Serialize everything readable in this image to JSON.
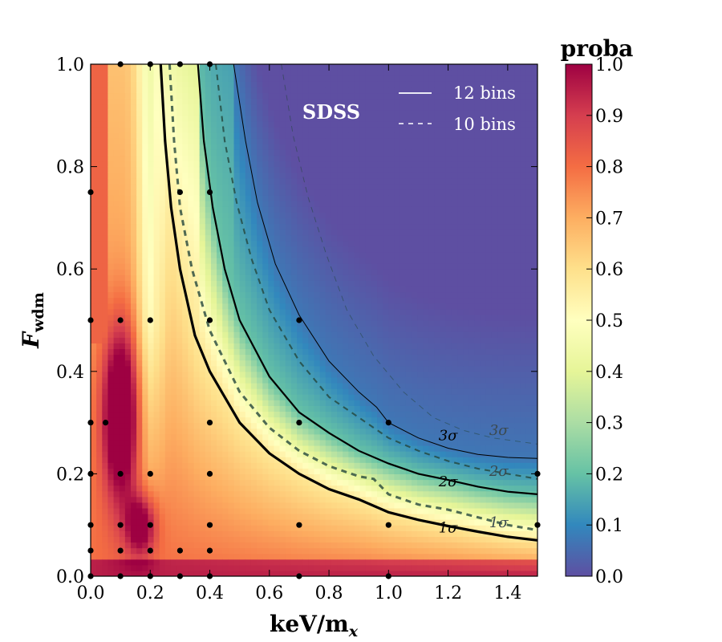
{
  "chart_data": {
    "type": "heatmap",
    "xlabel": "keV/m",
    "xlabel_sub": "x",
    "ylabel": "F",
    "ylabel_sub": "wdm",
    "xlim": [
      0.0,
      1.5
    ],
    "ylim": [
      0.0,
      1.0
    ],
    "xticks": [
      0.0,
      0.2,
      0.4,
      0.6,
      0.8,
      1.0,
      1.2,
      1.4
    ],
    "yticks": [
      0.0,
      0.2,
      0.4,
      0.6,
      0.8,
      1.0
    ],
    "annotation": "SDSS",
    "colorbar": {
      "title": "proba",
      "range": [
        0.0,
        1.0
      ],
      "ticks": [
        0.0,
        0.1,
        0.2,
        0.3,
        0.4,
        0.5,
        0.6,
        0.7,
        0.8,
        0.9,
        1.0
      ],
      "colormap": "Spectral_r"
    },
    "legend": {
      "position": "top-right",
      "entries": [
        {
          "label": "12 bins",
          "style": "solid"
        },
        {
          "label": "10 bins",
          "style": "dashed"
        }
      ]
    },
    "contours": [
      {
        "label": "1σ",
        "bins": "12",
        "style": "solid",
        "points": [
          [
            0.235,
            1.0
          ],
          [
            0.25,
            0.85
          ],
          [
            0.27,
            0.72
          ],
          [
            0.3,
            0.6
          ],
          [
            0.35,
            0.47
          ],
          [
            0.4,
            0.4
          ],
          [
            0.5,
            0.3
          ],
          [
            0.6,
            0.24
          ],
          [
            0.7,
            0.2
          ],
          [
            0.8,
            0.17
          ],
          [
            0.9,
            0.15
          ],
          [
            1.0,
            0.125
          ],
          [
            1.1,
            0.11
          ],
          [
            1.2,
            0.098
          ],
          [
            1.3,
            0.087
          ],
          [
            1.4,
            0.077
          ],
          [
            1.5,
            0.07
          ]
        ],
        "label_at": [
          1.2,
          0.095
        ]
      },
      {
        "label": "2σ",
        "bins": "12",
        "style": "solid",
        "points": [
          [
            0.36,
            1.0
          ],
          [
            0.38,
            0.85
          ],
          [
            0.41,
            0.72
          ],
          [
            0.45,
            0.6
          ],
          [
            0.5,
            0.5
          ],
          [
            0.6,
            0.39
          ],
          [
            0.7,
            0.32
          ],
          [
            0.8,
            0.28
          ],
          [
            0.9,
            0.245
          ],
          [
            1.0,
            0.22
          ],
          [
            1.1,
            0.2
          ],
          [
            1.2,
            0.188
          ],
          [
            1.3,
            0.175
          ],
          [
            1.4,
            0.165
          ],
          [
            1.5,
            0.16
          ]
        ],
        "label_at": [
          1.2,
          0.185
        ]
      },
      {
        "label": "3σ",
        "bins": "12",
        "style": "solid",
        "points": [
          [
            0.48,
            1.0
          ],
          [
            0.52,
            0.85
          ],
          [
            0.56,
            0.73
          ],
          [
            0.62,
            0.61
          ],
          [
            0.7,
            0.51
          ],
          [
            0.8,
            0.42
          ],
          [
            0.9,
            0.36
          ],
          [
            0.96,
            0.33
          ],
          [
            1.0,
            0.3
          ],
          [
            1.1,
            0.27
          ],
          [
            1.2,
            0.25
          ],
          [
            1.3,
            0.238
          ],
          [
            1.4,
            0.232
          ],
          [
            1.5,
            0.23
          ]
        ],
        "label_at": [
          1.2,
          0.275
        ]
      },
      {
        "label": "1σ",
        "bins": "10",
        "style": "dashed",
        "points": [
          [
            0.265,
            1.0
          ],
          [
            0.28,
            0.85
          ],
          [
            0.3,
            0.72
          ],
          [
            0.34,
            0.6
          ],
          [
            0.4,
            0.48
          ],
          [
            0.5,
            0.36
          ],
          [
            0.6,
            0.29
          ],
          [
            0.7,
            0.245
          ],
          [
            0.8,
            0.215
          ],
          [
            0.9,
            0.195
          ],
          [
            0.95,
            0.19
          ],
          [
            1.0,
            0.16
          ],
          [
            1.1,
            0.14
          ],
          [
            1.2,
            0.13
          ],
          [
            1.3,
            0.115
          ],
          [
            1.4,
            0.1
          ],
          [
            1.5,
            0.09
          ]
        ],
        "label_at": [
          1.37,
          0.105
        ]
      },
      {
        "label": "2σ",
        "bins": "10",
        "style": "dashed",
        "points": [
          [
            0.42,
            1.0
          ],
          [
            0.45,
            0.85
          ],
          [
            0.49,
            0.73
          ],
          [
            0.54,
            0.62
          ],
          [
            0.6,
            0.52
          ],
          [
            0.7,
            0.42
          ],
          [
            0.8,
            0.35
          ],
          [
            0.9,
            0.31
          ],
          [
            1.0,
            0.27
          ],
          [
            1.1,
            0.245
          ],
          [
            1.2,
            0.225
          ],
          [
            1.3,
            0.21
          ],
          [
            1.4,
            0.2
          ],
          [
            1.5,
            0.19
          ]
        ],
        "label_at": [
          1.37,
          0.205
        ]
      },
      {
        "label": "3σ",
        "bins": "10",
        "style": "dashed",
        "points": [
          [
            0.64,
            1.0
          ],
          [
            0.68,
            0.86
          ],
          [
            0.73,
            0.74
          ],
          [
            0.79,
            0.63
          ],
          [
            0.86,
            0.52
          ],
          [
            0.95,
            0.43
          ],
          [
            1.05,
            0.36
          ],
          [
            1.15,
            0.31
          ],
          [
            1.25,
            0.285
          ],
          [
            1.35,
            0.27
          ],
          [
            1.45,
            0.262
          ],
          [
            1.5,
            0.258
          ]
        ],
        "label_at": [
          1.37,
          0.285
        ]
      }
    ],
    "sample_points": [
      [
        0.0,
        0.0
      ],
      [
        0.1,
        0.0
      ],
      [
        0.2,
        0.0
      ],
      [
        0.3,
        0.0
      ],
      [
        0.4,
        0.0
      ],
      [
        0.7,
        0.0
      ],
      [
        1.0,
        0.0
      ],
      [
        0.0,
        0.05
      ],
      [
        0.1,
        0.05
      ],
      [
        0.2,
        0.05
      ],
      [
        0.3,
        0.05
      ],
      [
        0.4,
        0.05
      ],
      [
        0.0,
        0.1
      ],
      [
        0.1,
        0.1
      ],
      [
        0.2,
        0.1
      ],
      [
        0.4,
        0.1
      ],
      [
        0.7,
        0.1
      ],
      [
        1.0,
        0.1
      ],
      [
        1.5,
        0.1
      ],
      [
        0.0,
        0.2
      ],
      [
        0.1,
        0.2
      ],
      [
        0.2,
        0.2
      ],
      [
        0.4,
        0.2
      ],
      [
        1.5,
        0.2
      ],
      [
        0.0,
        0.3
      ],
      [
        0.05,
        0.3
      ],
      [
        0.4,
        0.3
      ],
      [
        0.7,
        0.3
      ],
      [
        1.0,
        0.3
      ],
      [
        0.0,
        0.5
      ],
      [
        0.1,
        0.5
      ],
      [
        0.2,
        0.5
      ],
      [
        0.4,
        0.5
      ],
      [
        0.7,
        0.5
      ],
      [
        0.0,
        0.75
      ],
      [
        0.3,
        0.75
      ],
      [
        0.4,
        0.75
      ],
      [
        0.1,
        1.0
      ],
      [
        0.2,
        1.0
      ],
      [
        0.3,
        1.0
      ],
      [
        0.4,
        1.0
      ]
    ],
    "heatmap": {
      "grid": [
        78,
        90
      ],
      "description_fields": [
        "low-x ridge",
        "contour-following falloff"
      ]
    }
  }
}
